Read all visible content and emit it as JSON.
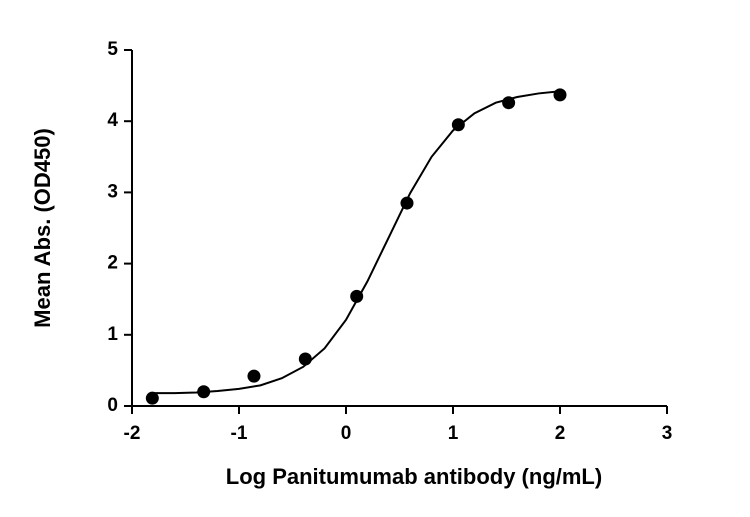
{
  "chart_data": {
    "type": "scatter",
    "x_label": "Log  Panitumumab antibody (ng/mL)",
    "y_label": "Mean  Abs. (OD450)",
    "x": [
      -1.81,
      -1.33,
      -0.86,
      -0.38,
      0.1,
      0.57,
      1.05,
      1.52,
      2.0
    ],
    "values": [
      0.11,
      0.2,
      0.42,
      0.66,
      1.54,
      2.85,
      3.95,
      4.26,
      4.37
    ],
    "color": "#000000",
    "fit": {
      "x": [
        -1.8,
        -1.6,
        -1.4,
        -1.2,
        -1.0,
        -0.8,
        -0.6,
        -0.4,
        -0.2,
        0,
        0.2,
        0.4,
        0.6,
        0.8,
        1.0,
        1.2,
        1.4,
        1.6,
        1.8,
        2.0
      ],
      "y": [
        0.18,
        0.18,
        0.19,
        0.21,
        0.24,
        0.29,
        0.39,
        0.55,
        0.81,
        1.21,
        1.75,
        2.37,
        2.99,
        3.5,
        3.87,
        4.11,
        4.26,
        4.34,
        4.39,
        4.42
      ]
    },
    "xlim": [
      -2,
      3
    ],
    "xticks": [
      -2,
      -1,
      0,
      1,
      2,
      3
    ],
    "ylim": [
      0,
      5
    ],
    "yticks": [
      0,
      1,
      2,
      3,
      4,
      5
    ]
  }
}
